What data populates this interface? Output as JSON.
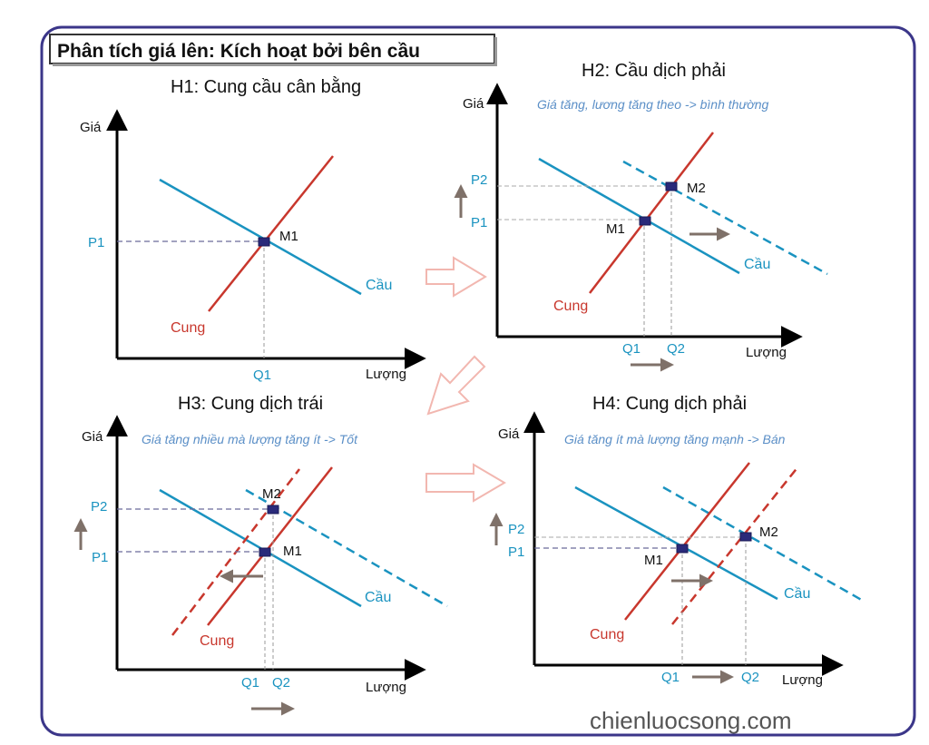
{
  "header": {
    "title": "Phân tích giá lên: Kích hoạt bởi bên cầu"
  },
  "watermark": "chienluocsong.com",
  "colors": {
    "frame": "#3b3689",
    "supply": "#c8372d",
    "demand": "#1a93c0",
    "axis_label": "#1a93c0",
    "note": "#5b8fc7",
    "arrow": "#7f7169",
    "transition_arrow": "#f2b7b0",
    "point_fill": "#2a2a7a"
  },
  "panels": {
    "h1": {
      "title": "H1: Cung cầu cân bằng",
      "y_axis": "Giá",
      "x_axis": "Lượng",
      "p1": "P1",
      "q1": "Q1",
      "m1": "M1",
      "supply_label": "Cung",
      "demand_label": "Cầu"
    },
    "h2": {
      "title": "H2: Cầu dịch phải",
      "note": "Giá tăng, lương tăng theo -> bình thường",
      "y_axis": "Giá",
      "x_axis": "Lượng",
      "p1": "P1",
      "p2": "P2",
      "q1": "Q1",
      "q2": "Q2",
      "m1": "M1",
      "m2": "M2",
      "supply_label": "Cung",
      "demand_label": "Cầu"
    },
    "h3": {
      "title": "H3: Cung dịch trái",
      "note": "Giá tăng nhiều mà lượng tăng ít -> Tốt",
      "y_axis": "Giá",
      "x_axis": "Lượng",
      "p1": "P1",
      "p2": "P2",
      "q1": "Q1",
      "q2": "Q2",
      "m1": "M1",
      "m2": "M2",
      "supply_label": "Cung",
      "demand_label": "Cầu"
    },
    "h4": {
      "title": "H4: Cung dịch phải",
      "note": "Giá tăng ít mà lượng tăng mạnh -> Bán",
      "y_axis": "Giá",
      "x_axis": "Lượng",
      "p1": "P1",
      "p2": "P2",
      "q1": "Q1",
      "q2": "Q2",
      "m1": "M1",
      "m2": "M2",
      "supply_label": "Cung",
      "demand_label": "Cầu"
    }
  }
}
